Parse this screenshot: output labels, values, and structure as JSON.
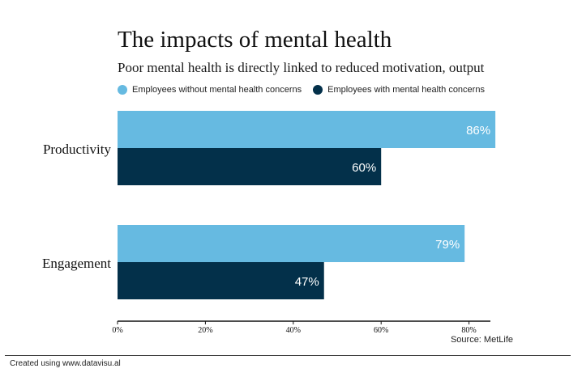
{
  "chart_data": {
    "type": "bar",
    "orientation": "horizontal",
    "title": "The impacts of mental health",
    "subtitle": "Poor mental health is directly linked to reduced motivation, output",
    "categories": [
      "Productivity",
      "Engagement"
    ],
    "series": [
      {
        "name": "Employees without mental health concerns",
        "values": [
          86,
          79
        ],
        "color": "#66bae1"
      },
      {
        "name": "Employees with mental health concerns",
        "values": [
          60,
          47
        ],
        "color": "#03304a"
      }
    ],
    "value_suffix": "%",
    "xlim": [
      0,
      85
    ],
    "xticks": [
      0,
      20,
      40,
      60,
      80
    ],
    "xtick_labels": [
      "0%",
      "20%",
      "40%",
      "60%",
      "80%"
    ],
    "xlabel": "",
    "ylabel": "",
    "grid": false,
    "legend_position": "top-left"
  },
  "source": "Source: MetLife",
  "credit": "Created using www.datavisu.al"
}
